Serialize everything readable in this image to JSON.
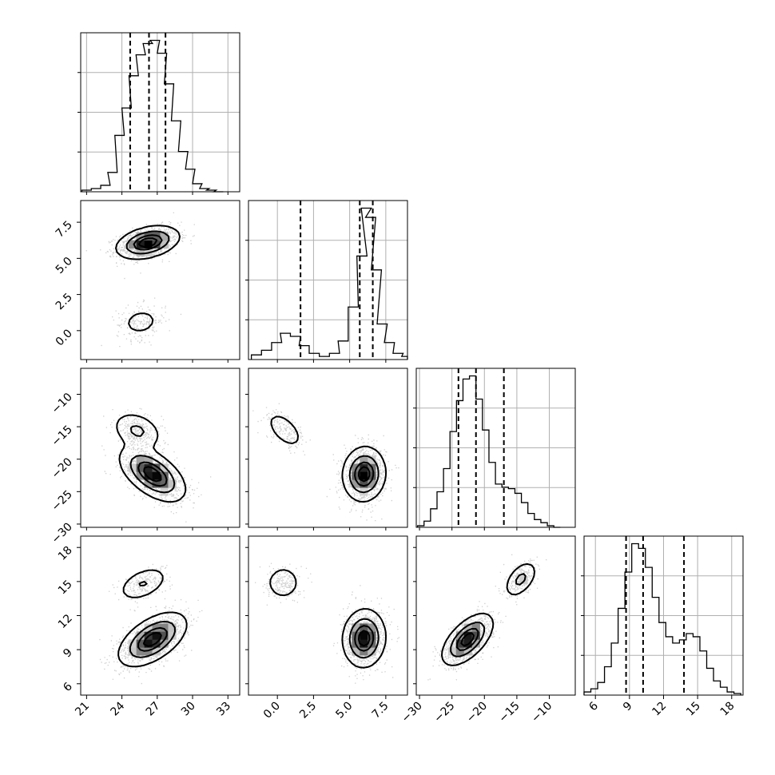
{
  "chart_data": {
    "type": "corner",
    "title": "",
    "parameters": [
      {
        "ticks": [
          21,
          24,
          27,
          30,
          33
        ],
        "tick_labels": [
          "21",
          "24",
          "27",
          "30",
          "33"
        ],
        "range": [
          20.5,
          34.0
        ]
      },
      {
        "ticks": [
          0.0,
          2.5,
          5.0,
          7.5
        ],
        "tick_labels": [
          "0.0",
          "2.5",
          "5.0",
          "7.5"
        ],
        "range": [
          -2.0,
          9.0
        ]
      },
      {
        "ticks": [
          -30,
          -25,
          -20,
          -15,
          -10
        ],
        "tick_labels": [
          "−30",
          "−25",
          "−20",
          "−15",
          "−10"
        ],
        "range": [
          -30.5,
          -6.0
        ]
      },
      {
        "ticks": [
          6,
          9,
          12,
          15,
          18
        ],
        "tick_labels": [
          "6",
          "9",
          "12",
          "15",
          "18"
        ],
        "range": [
          5.0,
          19.0
        ]
      }
    ],
    "diagonal": [
      {
        "param": 0,
        "quantiles": [
          24.7,
          26.3,
          27.7
        ],
        "bins": [
          [
            20.6,
            0.01
          ],
          [
            21.4,
            0.02
          ],
          [
            22.2,
            0.04
          ],
          [
            22.8,
            0.12
          ],
          [
            23.4,
            0.35
          ],
          [
            24.0,
            0.52
          ],
          [
            24.6,
            0.72
          ],
          [
            25.2,
            0.85
          ],
          [
            25.8,
            0.92
          ],
          [
            26.4,
            0.94
          ],
          [
            27.0,
            0.86
          ],
          [
            27.6,
            0.67
          ],
          [
            28.2,
            0.44
          ],
          [
            28.8,
            0.25
          ],
          [
            29.4,
            0.14
          ],
          [
            30.0,
            0.05
          ],
          [
            30.6,
            0.02
          ],
          [
            31.2,
            0.01
          ],
          [
            31.8,
            0.0
          ]
        ]
      },
      {
        "param": 1,
        "quantiles": [
          1.6,
          5.7,
          6.6
        ],
        "bins": [
          [
            -1.8,
            0.03
          ],
          [
            -1.1,
            0.06
          ],
          [
            -0.4,
            0.11
          ],
          [
            0.2,
            0.17
          ],
          [
            0.9,
            0.15
          ],
          [
            1.5,
            0.09
          ],
          [
            2.2,
            0.04
          ],
          [
            2.9,
            0.02
          ],
          [
            3.6,
            0.04
          ],
          [
            4.2,
            0.12
          ],
          [
            4.9,
            0.34
          ],
          [
            5.5,
            0.67
          ],
          [
            5.8,
            0.98
          ],
          [
            6.1,
            0.92
          ],
          [
            6.5,
            0.58
          ],
          [
            6.9,
            0.23
          ],
          [
            7.4,
            0.11
          ],
          [
            8.0,
            0.04
          ],
          [
            8.6,
            0.02
          ]
        ]
      },
      {
        "param": 2,
        "quantiles": [
          -24.0,
          -21.3,
          -17.0
        ],
        "bins": [
          [
            -30.3,
            0.01
          ],
          [
            -29.3,
            0.04
          ],
          [
            -28.3,
            0.12
          ],
          [
            -27.3,
            0.23
          ],
          [
            -26.3,
            0.38
          ],
          [
            -25.3,
            0.62
          ],
          [
            -24.3,
            0.82
          ],
          [
            -23.3,
            0.96
          ],
          [
            -22.3,
            0.98
          ],
          [
            -21.3,
            0.83
          ],
          [
            -20.3,
            0.63
          ],
          [
            -19.3,
            0.42
          ],
          [
            -18.3,
            0.28
          ],
          [
            -17.3,
            0.26
          ],
          [
            -16.3,
            0.25
          ],
          [
            -15.3,
            0.22
          ],
          [
            -14.3,
            0.16
          ],
          [
            -13.3,
            0.09
          ],
          [
            -12.3,
            0.05
          ],
          [
            -11.3,
            0.03
          ],
          [
            -10.3,
            0.01
          ],
          [
            -9.3,
            0.0
          ]
        ]
      },
      {
        "param": 3,
        "quantiles": [
          8.7,
          10.2,
          13.8
        ],
        "bins": [
          [
            5.0,
            0.02
          ],
          [
            5.6,
            0.04
          ],
          [
            6.2,
            0.08
          ],
          [
            6.8,
            0.18
          ],
          [
            7.4,
            0.33
          ],
          [
            8.0,
            0.55
          ],
          [
            8.6,
            0.78
          ],
          [
            9.2,
            0.96
          ],
          [
            9.8,
            0.93
          ],
          [
            10.4,
            0.81
          ],
          [
            11.0,
            0.62
          ],
          [
            11.6,
            0.46
          ],
          [
            12.2,
            0.37
          ],
          [
            12.8,
            0.33
          ],
          [
            13.4,
            0.35
          ],
          [
            14.0,
            0.39
          ],
          [
            14.6,
            0.37
          ],
          [
            15.2,
            0.28
          ],
          [
            15.8,
            0.17
          ],
          [
            16.4,
            0.09
          ],
          [
            17.0,
            0.05
          ],
          [
            17.6,
            0.02
          ],
          [
            18.2,
            0.01
          ]
        ]
      }
    ],
    "pairs": [
      {
        "x": 0,
        "y": 1,
        "modes": [
          {
            "cx": 26.2,
            "cy": 6.1,
            "sx": 1.3,
            "sy": 0.55,
            "rho": 0.35,
            "w": 0.85
          },
          {
            "cx": 25.6,
            "cy": 0.6,
            "sx": 1.05,
            "sy": 0.62,
            "rho": 0.15,
            "w": 0.15
          }
        ]
      },
      {
        "x": 0,
        "y": 2,
        "modes": [
          {
            "cx": 26.6,
            "cy": -22.3,
            "sx": 1.35,
            "sy": 2.05,
            "rho": -0.55,
            "w": 0.78
          },
          {
            "cx": 25.3,
            "cy": -15.6,
            "sx": 1.05,
            "sy": 1.45,
            "rho": -0.3,
            "w": 0.22
          }
        ]
      },
      {
        "x": 1,
        "y": 2,
        "modes": [
          {
            "cx": 6.0,
            "cy": -22.3,
            "sx": 0.72,
            "sy": 2.05,
            "rho": 0.05,
            "w": 0.85
          },
          {
            "cx": 0.5,
            "cy": -15.5,
            "sx": 0.72,
            "sy": 1.6,
            "rho": -0.55,
            "w": 0.15
          }
        ]
      },
      {
        "x": 0,
        "y": 3,
        "modes": [
          {
            "cx": 26.6,
            "cy": 9.9,
            "sx": 1.4,
            "sy": 1.15,
            "rho": 0.55,
            "w": 0.82
          },
          {
            "cx": 25.8,
            "cy": 14.8,
            "sx": 1.05,
            "sy": 0.75,
            "rho": 0.45,
            "w": 0.18
          }
        ]
      },
      {
        "x": 1,
        "y": 3,
        "modes": [
          {
            "cx": 6.0,
            "cy": 10.0,
            "sx": 0.72,
            "sy": 1.25,
            "rho": 0.05,
            "w": 0.85
          },
          {
            "cx": 0.4,
            "cy": 14.9,
            "sx": 0.6,
            "sy": 0.75,
            "rho": 0.0,
            "w": 0.15
          }
        ]
      },
      {
        "x": 2,
        "y": 3,
        "modes": [
          {
            "cx": -22.6,
            "cy": 9.9,
            "sx": 1.9,
            "sy": 1.1,
            "rho": 0.6,
            "w": 0.8
          },
          {
            "cx": -14.4,
            "cy": 15.2,
            "sx": 1.25,
            "sy": 0.8,
            "rho": 0.5,
            "w": 0.2
          }
        ]
      }
    ],
    "contour_levels": [
      0.118,
      0.393,
      0.675,
      0.865
    ]
  }
}
